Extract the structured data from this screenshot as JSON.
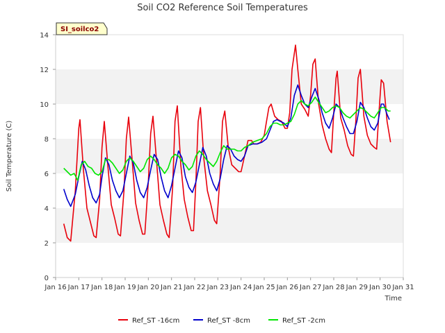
{
  "chart_data": {
    "type": "line",
    "title": "Soil CO2 Reference Soil Temperatures",
    "xlabel": "Time",
    "ylabel": "Soil Temperature (C)",
    "badge": "SI_soilco2",
    "ylim": [
      0,
      14
    ],
    "xlim": [
      16,
      31
    ],
    "x_ticks": [
      {
        "value": 16,
        "label": "Jan 16"
      },
      {
        "value": 17,
        "label": "Jan 17"
      },
      {
        "value": 18,
        "label": "Jan 18"
      },
      {
        "value": 19,
        "label": "Jan 19"
      },
      {
        "value": 20,
        "label": "Jan 20"
      },
      {
        "value": 21,
        "label": "Jan 21"
      },
      {
        "value": 22,
        "label": "Jan 22"
      },
      {
        "value": 23,
        "label": "Jan 23"
      },
      {
        "value": 24,
        "label": "Jan 24"
      },
      {
        "value": 25,
        "label": "Jan 25"
      },
      {
        "value": 26,
        "label": "Jan 26"
      },
      {
        "value": 27,
        "label": "Jan 27"
      },
      {
        "value": 28,
        "label": "Jan 28"
      },
      {
        "value": 29,
        "label": "Jan 29"
      },
      {
        "value": 30,
        "label": "Jan 30"
      },
      {
        "value": 31,
        "label": "Jan 31"
      }
    ],
    "y_ticks": [
      0,
      2,
      4,
      6,
      8,
      10,
      12,
      14
    ],
    "grid": "alternating horizontal bands",
    "legend_position": "bottom",
    "series": [
      {
        "name": "Ref_ST -16cm",
        "color": "#e8000b",
        "points": [
          [
            16.35,
            3.1
          ],
          [
            16.5,
            2.3
          ],
          [
            16.65,
            2.1
          ],
          [
            16.85,
            5.0
          ],
          [
            17.0,
            8.6
          ],
          [
            17.05,
            9.1
          ],
          [
            17.2,
            6.2
          ],
          [
            17.35,
            4.0
          ],
          [
            17.5,
            3.2
          ],
          [
            17.65,
            2.4
          ],
          [
            17.75,
            2.3
          ],
          [
            17.9,
            4.5
          ],
          [
            18.0,
            7.5
          ],
          [
            18.1,
            9.0
          ],
          [
            18.25,
            6.5
          ],
          [
            18.4,
            4.2
          ],
          [
            18.55,
            3.4
          ],
          [
            18.7,
            2.5
          ],
          [
            18.8,
            2.4
          ],
          [
            18.95,
            5.0
          ],
          [
            19.05,
            8.0
          ],
          [
            19.15,
            9.25
          ],
          [
            19.3,
            6.8
          ],
          [
            19.45,
            4.3
          ],
          [
            19.6,
            3.3
          ],
          [
            19.75,
            2.5
          ],
          [
            19.85,
            2.5
          ],
          [
            20.0,
            5.5
          ],
          [
            20.1,
            8.3
          ],
          [
            20.2,
            9.3
          ],
          [
            20.35,
            6.8
          ],
          [
            20.5,
            4.2
          ],
          [
            20.65,
            3.3
          ],
          [
            20.8,
            2.5
          ],
          [
            20.9,
            2.3
          ],
          [
            21.05,
            5.2
          ],
          [
            21.15,
            9.0
          ],
          [
            21.25,
            9.9
          ],
          [
            21.4,
            6.5
          ],
          [
            21.55,
            4.5
          ],
          [
            21.7,
            3.5
          ],
          [
            21.85,
            2.7
          ],
          [
            21.95,
            2.7
          ],
          [
            22.05,
            5.5
          ],
          [
            22.15,
            9.0
          ],
          [
            22.25,
            9.8
          ],
          [
            22.4,
            6.8
          ],
          [
            22.55,
            5.0
          ],
          [
            22.7,
            4.2
          ],
          [
            22.85,
            3.3
          ],
          [
            22.95,
            3.1
          ],
          [
            23.1,
            6.0
          ],
          [
            23.2,
            9.0
          ],
          [
            23.3,
            9.6
          ],
          [
            23.45,
            7.5
          ],
          [
            23.6,
            6.5
          ],
          [
            23.75,
            6.3
          ],
          [
            23.9,
            6.1
          ],
          [
            24.0,
            6.1
          ],
          [
            24.15,
            7.0
          ],
          [
            24.3,
            7.9
          ],
          [
            24.45,
            7.9
          ],
          [
            24.55,
            7.7
          ],
          [
            24.7,
            7.7
          ],
          [
            24.85,
            7.8
          ],
          [
            25.0,
            8.2
          ],
          [
            25.1,
            9.0
          ],
          [
            25.2,
            9.8
          ],
          [
            25.3,
            10.0
          ],
          [
            25.45,
            9.3
          ],
          [
            25.6,
            9.1
          ],
          [
            25.75,
            9.0
          ],
          [
            25.9,
            8.6
          ],
          [
            26.0,
            8.6
          ],
          [
            26.1,
            9.5
          ],
          [
            26.2,
            12.0
          ],
          [
            26.35,
            13.4
          ],
          [
            26.45,
            12.0
          ],
          [
            26.6,
            10.0
          ],
          [
            26.75,
            9.7
          ],
          [
            26.9,
            9.3
          ],
          [
            27.0,
            10.5
          ],
          [
            27.1,
            12.3
          ],
          [
            27.2,
            12.6
          ],
          [
            27.35,
            10.0
          ],
          [
            27.5,
            8.8
          ],
          [
            27.65,
            8.0
          ],
          [
            27.8,
            7.4
          ],
          [
            27.9,
            7.2
          ],
          [
            28.0,
            9.5
          ],
          [
            28.1,
            11.5
          ],
          [
            28.15,
            11.9
          ],
          [
            28.3,
            9.2
          ],
          [
            28.45,
            8.5
          ],
          [
            28.6,
            7.6
          ],
          [
            28.75,
            7.1
          ],
          [
            28.85,
            7.0
          ],
          [
            28.95,
            9.0
          ],
          [
            29.05,
            11.5
          ],
          [
            29.15,
            12.0
          ],
          [
            29.3,
            9.3
          ],
          [
            29.45,
            8.2
          ],
          [
            29.6,
            7.7
          ],
          [
            29.75,
            7.5
          ],
          [
            29.85,
            7.4
          ],
          [
            29.95,
            9.5
          ],
          [
            30.05,
            11.4
          ],
          [
            30.15,
            11.2
          ],
          [
            30.3,
            9.0
          ],
          [
            30.45,
            7.8
          ]
        ]
      },
      {
        "name": "Ref_ST -8cm",
        "color": "#0000cc",
        "points": [
          [
            16.35,
            5.1
          ],
          [
            16.5,
            4.5
          ],
          [
            16.65,
            4.1
          ],
          [
            16.85,
            4.8
          ],
          [
            17.0,
            5.8
          ],
          [
            17.15,
            6.7
          ],
          [
            17.3,
            6.2
          ],
          [
            17.45,
            5.3
          ],
          [
            17.6,
            4.6
          ],
          [
            17.75,
            4.3
          ],
          [
            17.9,
            4.8
          ],
          [
            18.0,
            5.8
          ],
          [
            18.15,
            6.9
          ],
          [
            18.3,
            6.5
          ],
          [
            18.45,
            5.6
          ],
          [
            18.6,
            5.0
          ],
          [
            18.75,
            4.6
          ],
          [
            18.9,
            5.0
          ],
          [
            19.05,
            6.0
          ],
          [
            19.2,
            7.0
          ],
          [
            19.35,
            6.6
          ],
          [
            19.5,
            5.6
          ],
          [
            19.65,
            4.9
          ],
          [
            19.8,
            4.6
          ],
          [
            19.95,
            5.2
          ],
          [
            20.1,
            6.2
          ],
          [
            20.25,
            7.1
          ],
          [
            20.4,
            6.8
          ],
          [
            20.55,
            5.8
          ],
          [
            20.7,
            5.0
          ],
          [
            20.85,
            4.6
          ],
          [
            21.0,
            5.3
          ],
          [
            21.15,
            6.3
          ],
          [
            21.3,
            7.3
          ],
          [
            21.45,
            6.9
          ],
          [
            21.6,
            5.8
          ],
          [
            21.75,
            5.2
          ],
          [
            21.9,
            4.9
          ],
          [
            22.05,
            5.5
          ],
          [
            22.2,
            6.5
          ],
          [
            22.35,
            7.5
          ],
          [
            22.5,
            7.0
          ],
          [
            22.65,
            6.0
          ],
          [
            22.8,
            5.4
          ],
          [
            22.95,
            5.0
          ],
          [
            23.1,
            5.7
          ],
          [
            23.25,
            6.8
          ],
          [
            23.4,
            7.6
          ],
          [
            23.55,
            7.4
          ],
          [
            23.7,
            7.0
          ],
          [
            23.85,
            6.8
          ],
          [
            24.0,
            6.7
          ],
          [
            24.15,
            7.0
          ],
          [
            24.3,
            7.6
          ],
          [
            24.5,
            7.7
          ],
          [
            24.7,
            7.7
          ],
          [
            24.9,
            7.8
          ],
          [
            25.1,
            8.0
          ],
          [
            25.25,
            8.5
          ],
          [
            25.4,
            9.0
          ],
          [
            25.55,
            9.1
          ],
          [
            25.7,
            9.0
          ],
          [
            25.85,
            8.9
          ],
          [
            26.0,
            8.7
          ],
          [
            26.15,
            9.2
          ],
          [
            26.3,
            10.5
          ],
          [
            26.45,
            11.1
          ],
          [
            26.6,
            10.5
          ],
          [
            26.75,
            10.0
          ],
          [
            26.9,
            9.8
          ],
          [
            27.05,
            10.4
          ],
          [
            27.2,
            10.9
          ],
          [
            27.35,
            10.3
          ],
          [
            27.5,
            9.5
          ],
          [
            27.65,
            8.9
          ],
          [
            27.8,
            8.6
          ],
          [
            27.95,
            9.2
          ],
          [
            28.1,
            10.0
          ],
          [
            28.25,
            9.8
          ],
          [
            28.4,
            9.2
          ],
          [
            28.55,
            8.7
          ],
          [
            28.7,
            8.3
          ],
          [
            28.85,
            8.3
          ],
          [
            29.0,
            9.0
          ],
          [
            29.15,
            10.1
          ],
          [
            29.3,
            9.8
          ],
          [
            29.45,
            9.2
          ],
          [
            29.6,
            8.7
          ],
          [
            29.75,
            8.5
          ],
          [
            29.9,
            8.9
          ],
          [
            30.05,
            10.0
          ],
          [
            30.15,
            10.0
          ],
          [
            30.3,
            9.4
          ],
          [
            30.4,
            9.1
          ]
        ]
      },
      {
        "name": "Ref_ST -2cm",
        "color": "#00e600",
        "points": [
          [
            16.35,
            6.3
          ],
          [
            16.5,
            6.1
          ],
          [
            16.65,
            5.9
          ],
          [
            16.8,
            6.0
          ],
          [
            16.95,
            5.6
          ],
          [
            17.1,
            6.5
          ],
          [
            17.25,
            6.7
          ],
          [
            17.4,
            6.4
          ],
          [
            17.55,
            6.3
          ],
          [
            17.7,
            6.0
          ],
          [
            17.85,
            5.9
          ],
          [
            18.0,
            6.1
          ],
          [
            18.15,
            6.8
          ],
          [
            18.3,
            6.8
          ],
          [
            18.45,
            6.6
          ],
          [
            18.6,
            6.3
          ],
          [
            18.75,
            6.0
          ],
          [
            18.9,
            6.2
          ],
          [
            19.05,
            6.7
          ],
          [
            19.2,
            6.9
          ],
          [
            19.35,
            6.7
          ],
          [
            19.5,
            6.4
          ],
          [
            19.65,
            6.1
          ],
          [
            19.8,
            6.3
          ],
          [
            19.95,
            6.8
          ],
          [
            20.1,
            7.0
          ],
          [
            20.25,
            6.8
          ],
          [
            20.4,
            6.5
          ],
          [
            20.55,
            6.3
          ],
          [
            20.7,
            6.0
          ],
          [
            20.85,
            6.3
          ],
          [
            21.0,
            6.9
          ],
          [
            21.15,
            7.1
          ],
          [
            21.3,
            7.0
          ],
          [
            21.45,
            6.7
          ],
          [
            21.6,
            6.5
          ],
          [
            21.75,
            6.2
          ],
          [
            21.9,
            6.4
          ],
          [
            22.05,
            7.0
          ],
          [
            22.2,
            7.3
          ],
          [
            22.35,
            7.1
          ],
          [
            22.5,
            6.8
          ],
          [
            22.65,
            6.6
          ],
          [
            22.8,
            6.4
          ],
          [
            22.95,
            6.7
          ],
          [
            23.1,
            7.2
          ],
          [
            23.25,
            7.6
          ],
          [
            23.4,
            7.4
          ],
          [
            23.55,
            7.4
          ],
          [
            23.7,
            7.4
          ],
          [
            23.85,
            7.3
          ],
          [
            24.0,
            7.3
          ],
          [
            24.15,
            7.5
          ],
          [
            24.3,
            7.6
          ],
          [
            24.5,
            7.8
          ],
          [
            24.7,
            7.9
          ],
          [
            24.9,
            8.0
          ],
          [
            25.1,
            8.3
          ],
          [
            25.25,
            8.7
          ],
          [
            25.4,
            8.9
          ],
          [
            25.55,
            8.9
          ],
          [
            25.7,
            8.8
          ],
          [
            25.85,
            8.8
          ],
          [
            26.0,
            8.9
          ],
          [
            26.15,
            9.0
          ],
          [
            26.3,
            9.4
          ],
          [
            26.45,
            10.0
          ],
          [
            26.6,
            10.2
          ],
          [
            26.75,
            10.0
          ],
          [
            26.9,
            9.9
          ],
          [
            27.05,
            10.1
          ],
          [
            27.2,
            10.4
          ],
          [
            27.35,
            10.1
          ],
          [
            27.5,
            9.8
          ],
          [
            27.65,
            9.5
          ],
          [
            27.8,
            9.6
          ],
          [
            27.95,
            9.8
          ],
          [
            28.1,
            9.9
          ],
          [
            28.25,
            9.8
          ],
          [
            28.4,
            9.5
          ],
          [
            28.55,
            9.3
          ],
          [
            28.7,
            9.2
          ],
          [
            28.85,
            9.4
          ],
          [
            29.0,
            9.6
          ],
          [
            29.15,
            9.8
          ],
          [
            29.3,
            9.7
          ],
          [
            29.45,
            9.5
          ],
          [
            29.6,
            9.3
          ],
          [
            29.75,
            9.2
          ],
          [
            29.9,
            9.5
          ],
          [
            30.05,
            9.8
          ],
          [
            30.2,
            9.8
          ],
          [
            30.35,
            9.6
          ],
          [
            30.45,
            9.6
          ]
        ]
      }
    ]
  }
}
